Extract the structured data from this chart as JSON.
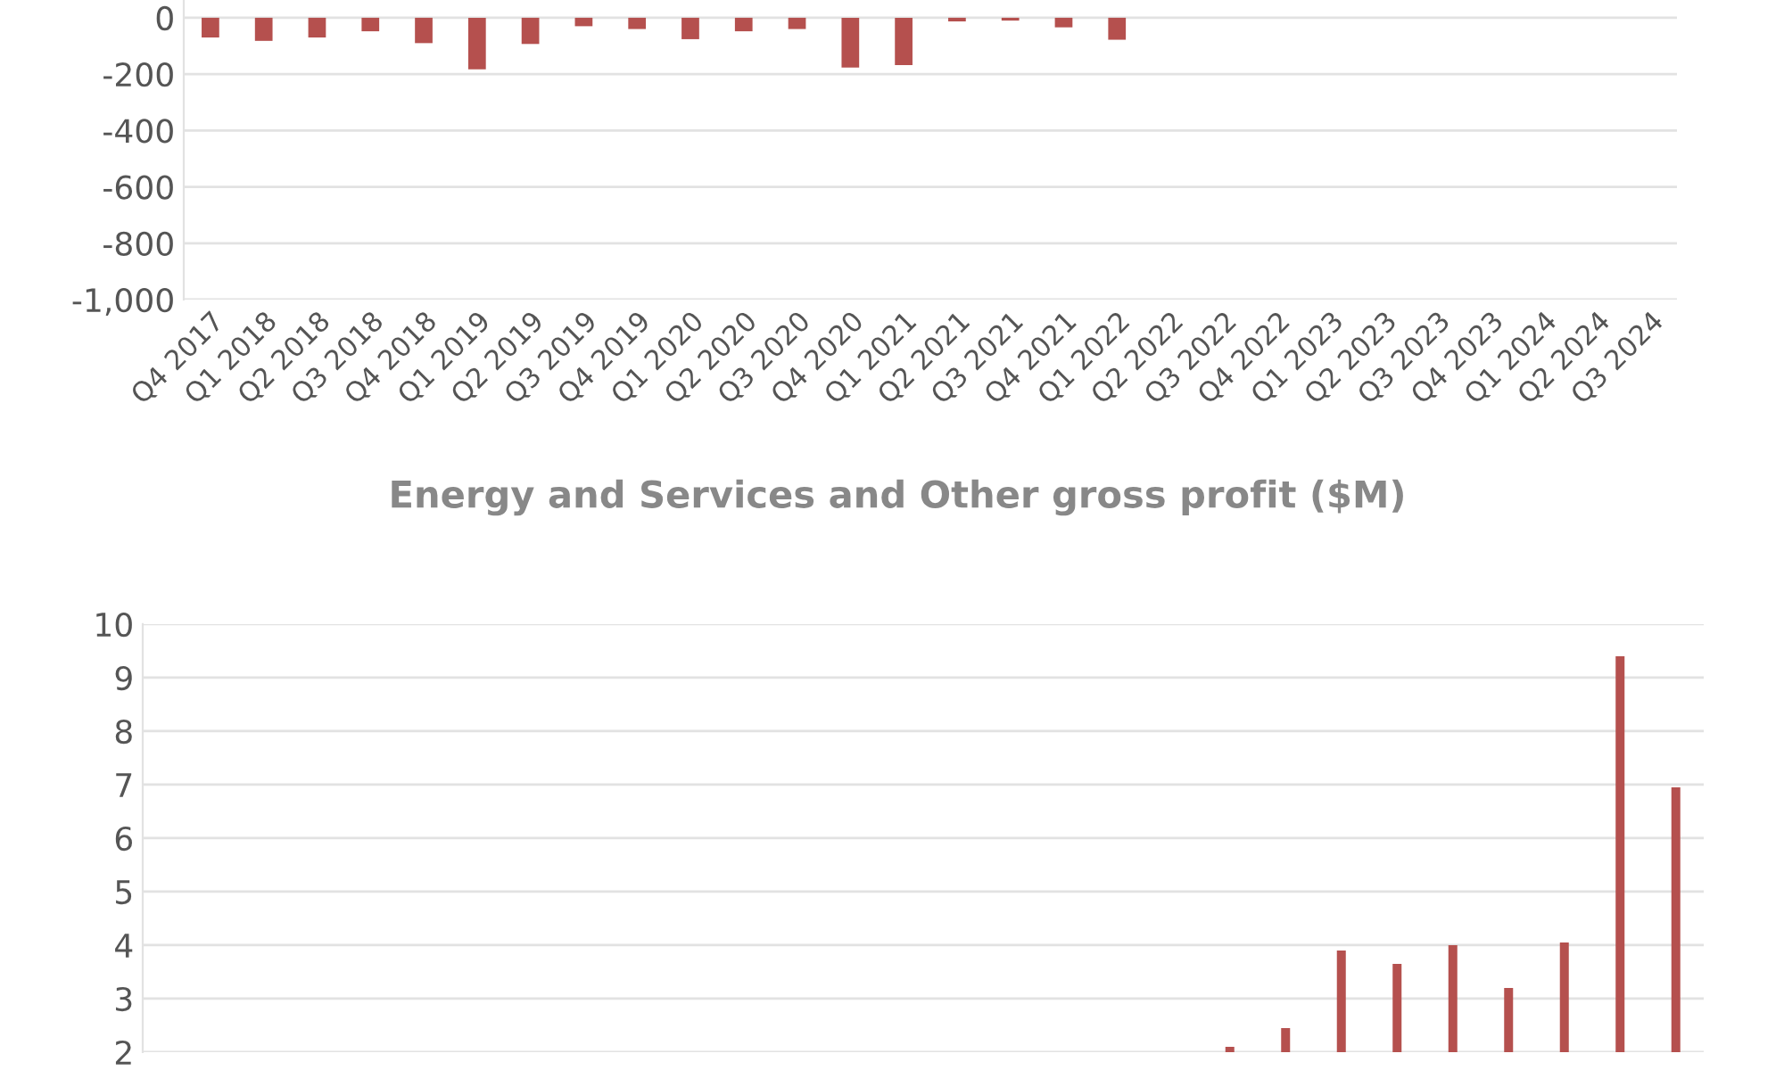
{
  "chart_data": [
    {
      "type": "bar",
      "categories": [
        "Q4 2017",
        "Q1 2018",
        "Q2 2018",
        "Q3 2018",
        "Q4 2018",
        "Q1 2019",
        "Q2 2019",
        "Q3 2019",
        "Q4 2019",
        "Q1 2020",
        "Q2 2020",
        "Q3 2020",
        "Q4 2020",
        "Q1 2021",
        "Q2 2021",
        "Q3 2021",
        "Q4 2021",
        "Q1 2022",
        "Q2 2022",
        "Q3 2022",
        "Q4 2022",
        "Q1 2023",
        "Q2 2023",
        "Q3 2023",
        "Q4 2023",
        "Q1 2024",
        "Q2 2024",
        "Q3 2024"
      ],
      "values": [
        -70,
        -82,
        -70,
        -48,
        -90,
        -183,
        -93,
        -30,
        -40,
        -76,
        -48,
        -40,
        -177,
        -168,
        -13,
        -10,
        -34,
        -78,
        null,
        null,
        null,
        null,
        null,
        null,
        null,
        null,
        null,
        null
      ],
      "color": "#b5504e",
      "ylim": [
        -1000,
        63
      ],
      "yticks": [
        0,
        {
          "value": -200,
          "label": "-200"
        },
        {
          "value": -400,
          "label": "-400"
        },
        {
          "value": -600,
          "label": "-600"
        },
        {
          "value": -800,
          "label": "-800"
        },
        {
          "value": -1000,
          "label": "-1,000"
        }
      ],
      "grid": "y",
      "legend": false
    },
    {
      "type": "bar",
      "title": "Energy and Services and Other gross profit ($M)",
      "categories": [
        null,
        null,
        null,
        null,
        null,
        null,
        null,
        null,
        null,
        null,
        null,
        null,
        null,
        null,
        null,
        null,
        null,
        null,
        null,
        null,
        null,
        null,
        null,
        null,
        null,
        null,
        null,
        null
      ],
      "values": [
        null,
        null,
        null,
        null,
        null,
        null,
        null,
        null,
        null,
        null,
        null,
        null,
        null,
        null,
        null,
        null,
        null,
        null,
        null,
        2.1,
        2.45,
        3.9,
        3.65,
        4.0,
        3.2,
        4.05,
        9.4,
        6.95
      ],
      "color": "#b5504e",
      "ylim": [
        2,
        10
      ],
      "yticks": [
        2,
        3,
        4,
        5,
        6,
        7,
        8,
        9,
        10
      ],
      "grid": "y",
      "legend": false,
      "tick_labels": "y"
    }
  ]
}
